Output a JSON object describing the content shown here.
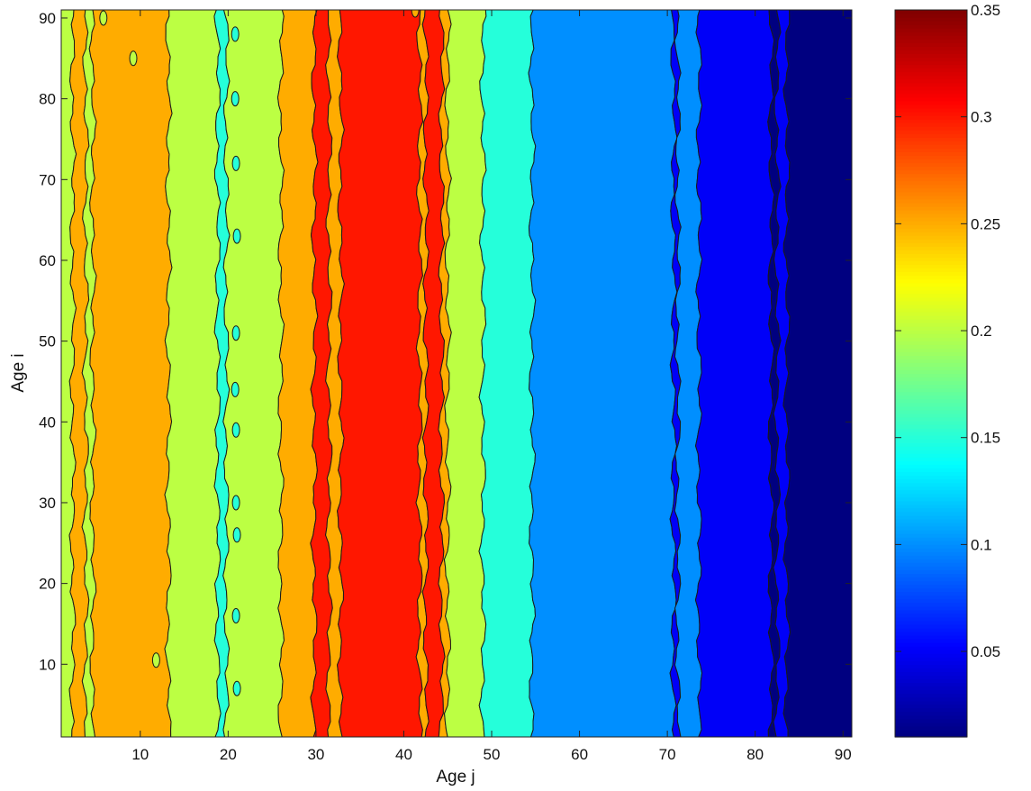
{
  "chart_data": {
    "type": "heatmap",
    "subtype": "filled-contour",
    "xlabel": "Age j",
    "ylabel": "Age i",
    "xlim": [
      1,
      91
    ],
    "ylim": [
      1,
      91
    ],
    "x_ticks": [
      10,
      20,
      30,
      40,
      50,
      60,
      70,
      80,
      90
    ],
    "y_ticks": [
      10,
      20,
      30,
      40,
      50,
      60,
      70,
      80,
      90
    ],
    "colorbar": {
      "colormap": "jet",
      "range": [
        0.01,
        0.35
      ],
      "ticks": [
        {
          "value": 0.05,
          "label": "0.05"
        },
        {
          "value": 0.1,
          "label": "0.1"
        },
        {
          "value": 0.15,
          "label": "0.15"
        },
        {
          "value": 0.2,
          "label": "0.2"
        },
        {
          "value": 0.25,
          "label": "0.25"
        },
        {
          "value": 0.3,
          "label": "0.3"
        },
        {
          "value": 0.35,
          "label": "0.35"
        }
      ]
    },
    "bands": [
      {
        "x_start": 1,
        "x_end": 2.3,
        "value": 0.2
      },
      {
        "x_start": 2.3,
        "x_end": 3.8,
        "value": 0.25
      },
      {
        "x_start": 3.8,
        "x_end": 4.6,
        "value": 0.2
      },
      {
        "x_start": 4.6,
        "x_end": 13.2,
        "value": 0.25
      },
      {
        "x_start": 13.2,
        "x_end": 18.8,
        "value": 0.2
      },
      {
        "x_start": 18.8,
        "x_end": 19.8,
        "value": 0.15
      },
      {
        "x_start": 19.8,
        "x_end": 26.0,
        "value": 0.2
      },
      {
        "x_start": 26.0,
        "x_end": 29.8,
        "value": 0.25
      },
      {
        "x_start": 29.8,
        "x_end": 31.5,
        "value": 0.3
      },
      {
        "x_start": 31.5,
        "x_end": 32.8,
        "value": 0.25
      },
      {
        "x_start": 32.8,
        "x_end": 41.8,
        "value": 0.3
      },
      {
        "x_start": 41.8,
        "x_end": 42.5,
        "value": 0.25
      },
      {
        "x_start": 42.5,
        "x_end": 44.3,
        "value": 0.3
      },
      {
        "x_start": 44.3,
        "x_end": 45.0,
        "value": 0.25
      },
      {
        "x_start": 45.0,
        "x_end": 49.0,
        "value": 0.2
      },
      {
        "x_start": 49.0,
        "x_end": 54.6,
        "value": 0.15
      },
      {
        "x_start": 54.6,
        "x_end": 70.7,
        "value": 0.1
      },
      {
        "x_start": 70.7,
        "x_end": 71.2,
        "value": 0.05
      },
      {
        "x_start": 71.2,
        "x_end": 73.6,
        "value": 0.1
      },
      {
        "x_start": 73.6,
        "x_end": 81.8,
        "value": 0.05
      },
      {
        "x_start": 81.8,
        "x_end": 82.5,
        "value": 0.01
      },
      {
        "x_start": 82.5,
        "x_end": 83.6,
        "value": 0.05
      },
      {
        "x_start": 83.6,
        "x_end": 91,
        "value": 0.01
      }
    ],
    "islands": [
      {
        "x": 20.8,
        "y": 88,
        "value": 0.15
      },
      {
        "x": 20.8,
        "y": 80,
        "value": 0.15
      },
      {
        "x": 20.9,
        "y": 72,
        "value": 0.15
      },
      {
        "x": 21.0,
        "y": 63,
        "value": 0.15
      },
      {
        "x": 20.9,
        "y": 51,
        "value": 0.15
      },
      {
        "x": 20.8,
        "y": 44,
        "value": 0.15
      },
      {
        "x": 20.9,
        "y": 39,
        "value": 0.15
      },
      {
        "x": 20.9,
        "y": 30,
        "value": 0.15
      },
      {
        "x": 21.0,
        "y": 26,
        "value": 0.15
      },
      {
        "x": 20.9,
        "y": 16,
        "value": 0.15
      },
      {
        "x": 21.0,
        "y": 7,
        "value": 0.15
      },
      {
        "x": 41.3,
        "y": 91,
        "value": 0.25
      },
      {
        "x": 11.8,
        "y": 10.5,
        "value": 0.2
      },
      {
        "x": 5.8,
        "y": 90,
        "value": 0.2
      },
      {
        "x": 9.2,
        "y": 85,
        "value": 0.2
      }
    ]
  }
}
